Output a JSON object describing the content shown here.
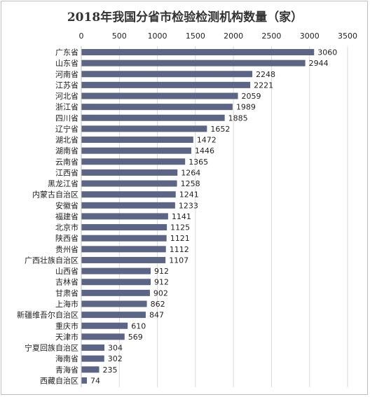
{
  "chart_data": {
    "type": "bar",
    "orientation": "horizontal",
    "title": "2018年我国分省市检验检测机构数量（家）",
    "xlabel": "",
    "ylabel": "",
    "xlim": [
      0,
      3500
    ],
    "xticks": [
      0,
      500,
      1000,
      1500,
      2000,
      2500,
      3000,
      3500
    ],
    "grid": true,
    "legend": "none",
    "bar_color": "#5d6584",
    "categories": [
      "广东省",
      "山东省",
      "河南省",
      "江苏省",
      "河北省",
      "浙江省",
      "四川省",
      "辽宁省",
      "湖北省",
      "湖南省",
      "云南省",
      "江西省",
      "黑龙江省",
      "内蒙古自治区",
      "安徽省",
      "福建省",
      "北京市",
      "陕西省",
      "贵州省",
      "广西壮族自治区",
      "山西省",
      "吉林省",
      "甘肃省",
      "上海市",
      "新疆维吾尔自治区",
      "重庆市",
      "天津市",
      "宁夏回族自治区",
      "海南省",
      "青海省",
      "西藏自治区"
    ],
    "values": [
      3060,
      2944,
      2248,
      2221,
      2059,
      1989,
      1885,
      1652,
      1472,
      1446,
      1365,
      1264,
      1258,
      1241,
      1233,
      1141,
      1125,
      1121,
      1112,
      1107,
      912,
      912,
      902,
      862,
      847,
      610,
      569,
      304,
      302,
      235,
      74
    ]
  }
}
